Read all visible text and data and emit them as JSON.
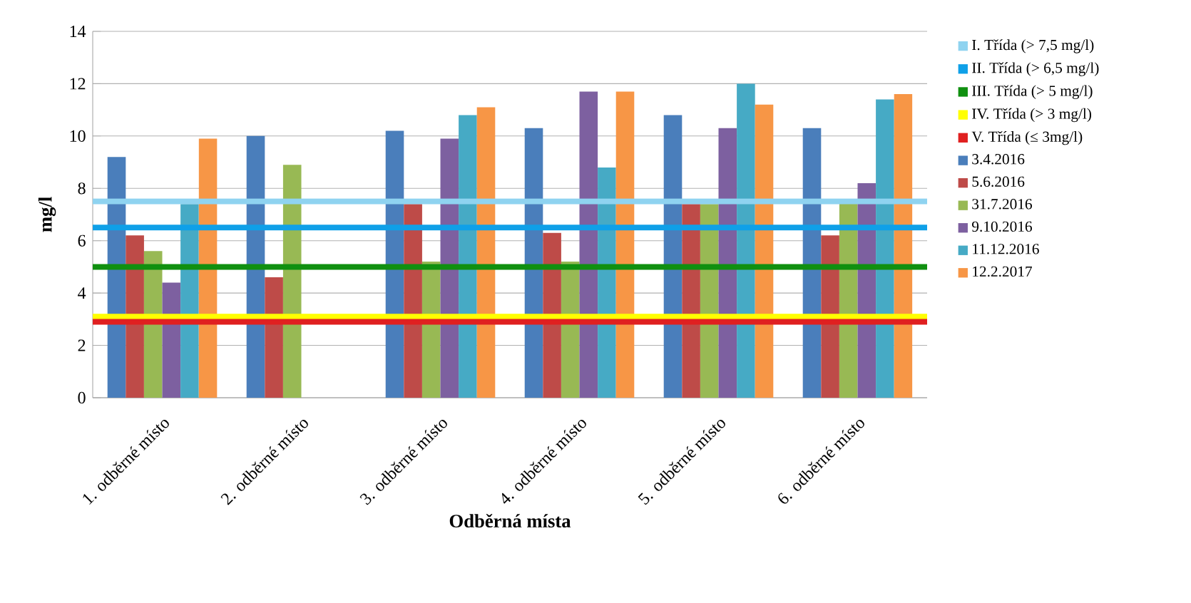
{
  "chart_data": {
    "type": "bar",
    "xlabel": "Odběrná místa",
    "ylabel": "mg/l",
    "categories": [
      "1. odběrné místo",
      "2. odběrné místo",
      "3. odběrné místo",
      "4. odběrné místo",
      "5. odběrné místo",
      "6. odběrné místo"
    ],
    "series": [
      {
        "name": "3.4.2016",
        "color": "#4a7ebb",
        "values": [
          9.2,
          10.0,
          10.2,
          10.3,
          10.8,
          10.3
        ]
      },
      {
        "name": "5.6.2016",
        "color": "#be4b48",
        "values": [
          6.2,
          4.6,
          7.4,
          6.3,
          7.4,
          6.2
        ]
      },
      {
        "name": "31.7.2016",
        "color": "#98b954",
        "values": [
          5.6,
          8.9,
          5.2,
          5.2,
          7.4,
          7.5
        ]
      },
      {
        "name": "9.10.2016",
        "color": "#7d60a0",
        "values": [
          4.4,
          null,
          9.9,
          11.7,
          10.3,
          8.2
        ]
      },
      {
        "name": "11.12.2016",
        "color": "#46aac5",
        "values": [
          7.4,
          null,
          10.8,
          8.8,
          12.0,
          11.4
        ]
      },
      {
        "name": "12.2.2017",
        "color": "#f79646",
        "values": [
          9.9,
          null,
          11.1,
          11.7,
          11.2,
          11.6
        ]
      }
    ],
    "ref_lines": [
      {
        "axis": "y",
        "value": 7.5,
        "label": "I. Třída (> 7,5 mg/l)",
        "color": "#8fd3f0"
      },
      {
        "axis": "y",
        "value": 6.5,
        "label": "II. Třída (> 6,5 mg/l)",
        "color": "#0fa0e8"
      },
      {
        "axis": "y",
        "value": 5,
        "label": "III. Třída (> 5 mg/l)",
        "color": "#109010"
      },
      {
        "axis": "y",
        "value": 3.1,
        "label": "IV. Třída (> 3 mg/l)",
        "color": "#ffff00"
      },
      {
        "axis": "y",
        "value": 2.9,
        "label": "V. Třída (≤ 3mg/l)",
        "color": "#e02020"
      }
    ],
    "ylim": [
      0,
      14
    ],
    "yticks": [
      0,
      2,
      4,
      6,
      8,
      10,
      12,
      14
    ],
    "grid": "y",
    "legend": "right"
  }
}
